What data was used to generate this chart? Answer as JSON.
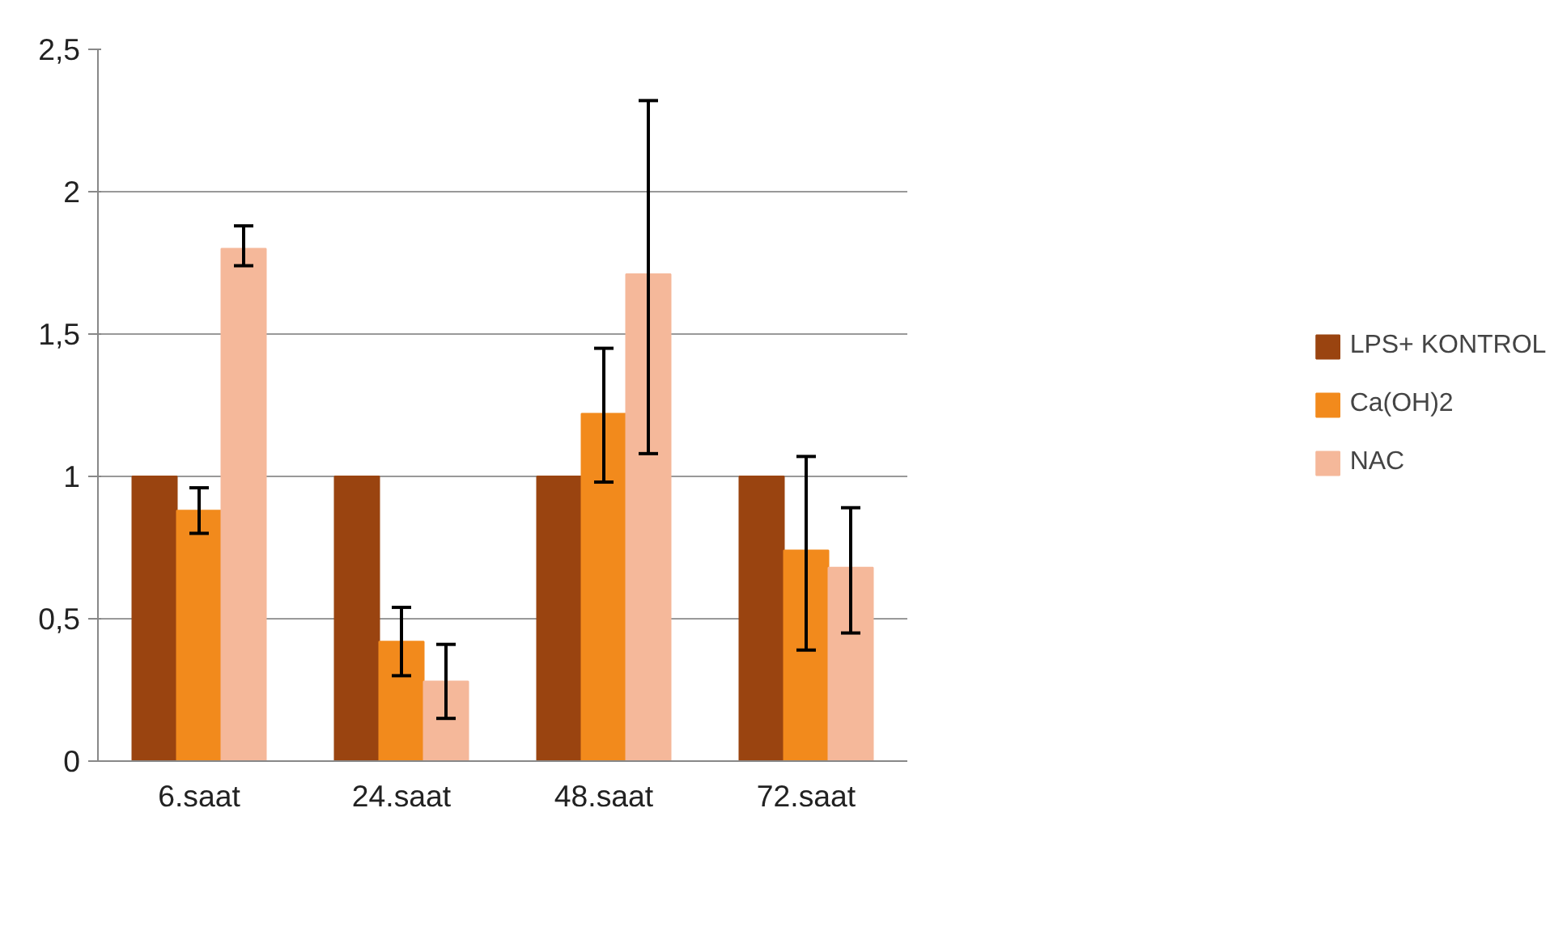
{
  "chart_data": {
    "type": "bar",
    "categories": [
      "6.saat",
      "24.saat",
      "48.saat",
      "72.saat"
    ],
    "series": [
      {
        "name": "LPS+ KONTROL",
        "color": "#9a4410",
        "values": [
          1,
          1,
          1,
          1
        ]
      },
      {
        "name": "Ca(OH)2",
        "color": "#f28a1c",
        "values": [
          0.88,
          0.42,
          1.22,
          0.74
        ],
        "errors": [
          [
            0.8,
            0.96
          ],
          [
            0.3,
            0.54
          ],
          [
            0.98,
            1.45
          ],
          [
            0.39,
            1.07
          ]
        ]
      },
      {
        "name": "NAC",
        "color": "#f5b89a",
        "values": [
          1.8,
          0.28,
          1.71,
          0.68
        ],
        "errors": [
          [
            1.74,
            1.88
          ],
          [
            0.15,
            0.41
          ],
          [
            1.08,
            2.32
          ],
          [
            0.45,
            0.89
          ]
        ]
      }
    ],
    "ylim": [
      0,
      2.5
    ],
    "yticks": [
      0,
      {
        "value": 0.5,
        "label": "0,5"
      },
      1,
      {
        "value": 1.5,
        "label": "1,5"
      },
      2,
      {
        "value": 2.5,
        "label": "2,5"
      }
    ],
    "grid": "y",
    "legend": "right"
  }
}
